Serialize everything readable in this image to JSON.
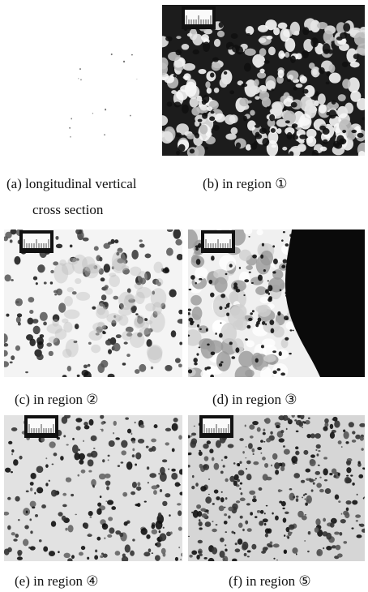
{
  "figure": {
    "panels": [
      {
        "caption": [
          "(a) longitudinal vertical",
          "cross section"
        ]
      },
      {
        "caption": [
          "(b) in region ①"
        ]
      },
      {
        "caption": [
          "(c) in region ②"
        ]
      },
      {
        "caption": [
          "(d) in region ③"
        ]
      },
      {
        "caption": [
          "(e) in region ④"
        ]
      },
      {
        "caption": [
          "(f) in region ⑤"
        ]
      }
    ]
  }
}
